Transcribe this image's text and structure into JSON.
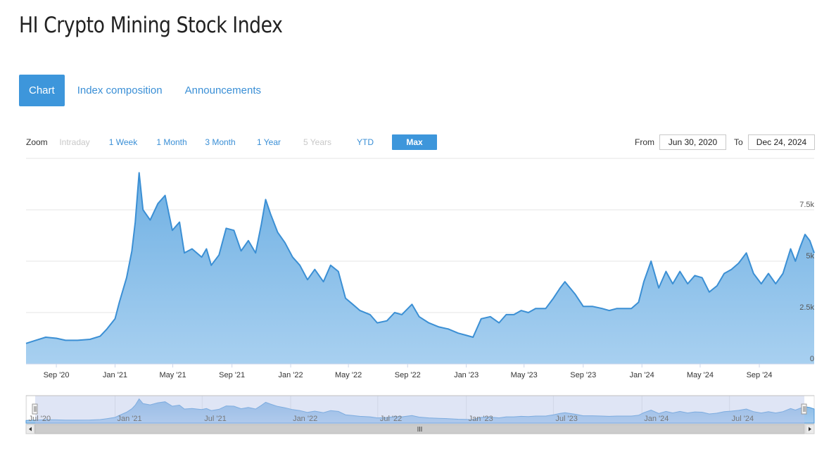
{
  "page": {
    "title": "HI Crypto Mining Stock Index"
  },
  "tabs": [
    {
      "label": "Chart",
      "active": true
    },
    {
      "label": "Index composition",
      "active": false
    },
    {
      "label": "Announcements",
      "active": false
    }
  ],
  "zoom": {
    "label": "Zoom",
    "buttons": [
      {
        "label": "Intraday",
        "state": "disabled"
      },
      {
        "label": "1 Week",
        "state": "enabled"
      },
      {
        "label": "1 Month",
        "state": "enabled"
      },
      {
        "label": "3 Month",
        "state": "enabled"
      },
      {
        "label": "1 Year",
        "state": "enabled"
      },
      {
        "label": "5 Years",
        "state": "disabled"
      },
      {
        "label": "YTD",
        "state": "enabled"
      },
      {
        "label": "Max",
        "state": "active"
      }
    ]
  },
  "range": {
    "from_label": "From",
    "from_value": "Jun 30, 2020",
    "to_label": "To",
    "to_value": "Dec 24, 2024"
  },
  "colors": {
    "accent": "#3d96db",
    "series_line": "#3b8fd4",
    "series_fill_top": "#6fb0e3",
    "series_fill_bottom": "#a8d0f0",
    "navigator_mask": "#d3dcf0"
  },
  "navigator": {
    "labels": [
      "Jul '20",
      "Jan '21",
      "Jul '21",
      "Jan '22",
      "Jul '22",
      "Jan '23",
      "Jul '23",
      "Jan '24",
      "Jul '24"
    ]
  },
  "chart_data": {
    "type": "area",
    "title": "",
    "xlabel": "",
    "ylabel": "",
    "x_range": [
      "2020-06-30",
      "2024-12-24"
    ],
    "ylim": [
      0,
      10000
    ],
    "yticks": [
      {
        "value": 0,
        "label": "0"
      },
      {
        "value": 2500,
        "label": "2.5k"
      },
      {
        "value": 5000,
        "label": "5k"
      },
      {
        "value": 7500,
        "label": "7.5k"
      }
    ],
    "xticks": [
      "Sep '20",
      "Jan '21",
      "May '21",
      "Sep '21",
      "Jan '22",
      "May '22",
      "Sep '22",
      "Jan '23",
      "May '23",
      "Sep '23",
      "Jan '24",
      "May '24",
      "Sep '24"
    ],
    "grid": true,
    "legend": "none",
    "series": [
      {
        "x": [
          "2020-06-30",
          "2020-07-20",
          "2020-08-10",
          "2020-09-01",
          "2020-09-20",
          "2020-10-15",
          "2020-11-10",
          "2020-12-01",
          "2020-12-15",
          "2021-01-01",
          "2021-01-10",
          "2021-01-25",
          "2021-02-05",
          "2021-02-12",
          "2021-02-20",
          "2021-02-28",
          "2021-03-15",
          "2021-03-31",
          "2021-04-15",
          "2021-04-30",
          "2021-05-15",
          "2021-05-25",
          "2021-06-10",
          "2021-06-30",
          "2021-07-10",
          "2021-07-20",
          "2021-08-05",
          "2021-08-20",
          "2021-09-05",
          "2021-09-20",
          "2021-10-05",
          "2021-10-20",
          "2021-11-01",
          "2021-11-10",
          "2021-11-20",
          "2021-12-05",
          "2021-12-20",
          "2022-01-05",
          "2022-01-20",
          "2022-02-05",
          "2022-02-20",
          "2022-03-10",
          "2022-03-25",
          "2022-04-10",
          "2022-04-25",
          "2022-05-10",
          "2022-05-25",
          "2022-06-15",
          "2022-06-30",
          "2022-07-20",
          "2022-08-05",
          "2022-08-20",
          "2022-09-10",
          "2022-09-25",
          "2022-10-15",
          "2022-11-05",
          "2022-11-25",
          "2022-12-15",
          "2022-12-31",
          "2023-01-15",
          "2023-02-01",
          "2023-02-20",
          "2023-03-10",
          "2023-03-25",
          "2023-04-10",
          "2023-04-25",
          "2023-05-10",
          "2023-05-25",
          "2023-06-15",
          "2023-07-01",
          "2023-07-15",
          "2023-07-25",
          "2023-08-15",
          "2023-09-01",
          "2023-09-20",
          "2023-10-10",
          "2023-10-25",
          "2023-11-10",
          "2023-11-25",
          "2023-12-10",
          "2023-12-25",
          "2024-01-05",
          "2024-01-20",
          "2024-02-05",
          "2024-02-20",
          "2024-03-05",
          "2024-03-20",
          "2024-04-05",
          "2024-04-20",
          "2024-05-05",
          "2024-05-20",
          "2024-06-05",
          "2024-06-20",
          "2024-07-05",
          "2024-07-20",
          "2024-08-05",
          "2024-08-20",
          "2024-09-05",
          "2024-09-20",
          "2024-10-05",
          "2024-10-20",
          "2024-11-05",
          "2024-11-15",
          "2024-11-25",
          "2024-12-05",
          "2024-12-15",
          "2024-12-24"
        ],
        "y": [
          1000,
          1150,
          1300,
          1250,
          1150,
          1150,
          1200,
          1350,
          1700,
          2200,
          3000,
          4200,
          5500,
          6900,
          9300,
          7500,
          7000,
          7800,
          8200,
          6500,
          6900,
          5400,
          5600,
          5200,
          5600,
          4800,
          5300,
          6600,
          6500,
          5500,
          6000,
          5400,
          6800,
          8000,
          7300,
          6400,
          5900,
          5200,
          4800,
          4100,
          4600,
          4000,
          4800,
          4500,
          3200,
          2900,
          2600,
          2400,
          2000,
          2100,
          2500,
          2400,
          2900,
          2300,
          2000,
          1800,
          1700,
          1500,
          1400,
          1300,
          2200,
          2300,
          2000,
          2400,
          2400,
          2600,
          2500,
          2700,
          2700,
          3200,
          3700,
          4000,
          3400,
          2800,
          2800,
          2700,
          2600,
          2700,
          2700,
          2700,
          3000,
          4000,
          5000,
          3700,
          4500,
          3900,
          4500,
          3900,
          4300,
          4200,
          3500,
          3800,
          4400,
          4600,
          4900,
          5400,
          4400,
          3900,
          4400,
          3900,
          4400,
          5600,
          5000,
          5700,
          6300,
          6000,
          5400
        ]
      }
    ]
  }
}
